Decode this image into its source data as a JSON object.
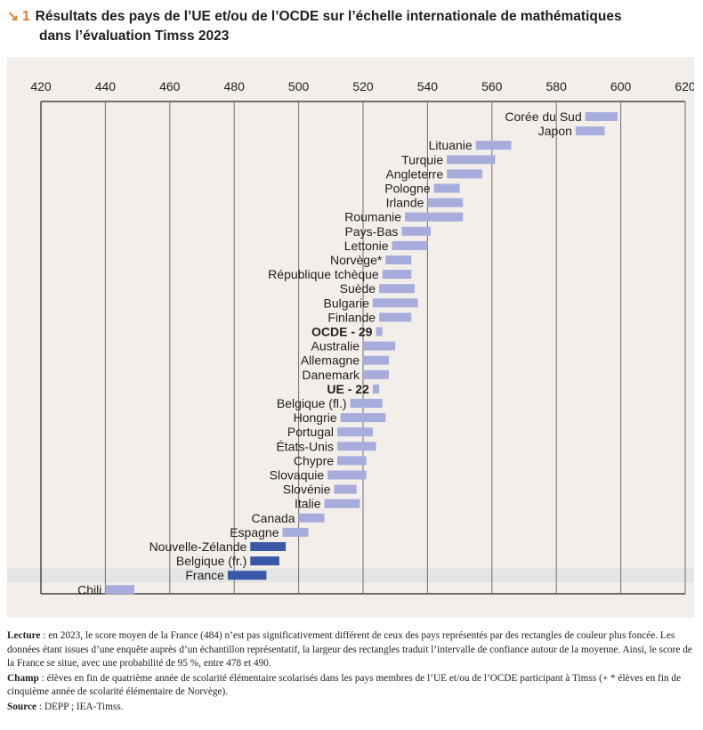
{
  "title": {
    "marker": "1",
    "line1": "Résultats des pays de l’UE et/ou de l’OCDE sur l’échelle internationale de mathématiques",
    "line2": "dans l’évaluation Timss 2023"
  },
  "chart_data": {
    "type": "range-bar",
    "xlim": [
      420,
      620
    ],
    "x_ticks": [
      420,
      440,
      460,
      480,
      500,
      520,
      540,
      560,
      580,
      600,
      620
    ],
    "grid": "vertical",
    "colors": {
      "default": "#a6acdc",
      "highlight": "#3a58a8",
      "france_band": "#e4e4e4"
    },
    "rows": [
      {
        "label": "Corée du Sud",
        "low": 589,
        "high": 599,
        "highlight": false,
        "bold": false
      },
      {
        "label": "Japon",
        "low": 586,
        "high": 595,
        "highlight": false,
        "bold": false
      },
      {
        "label": "Lituanie",
        "low": 555,
        "high": 566,
        "highlight": false,
        "bold": false
      },
      {
        "label": "Turquie",
        "low": 546,
        "high": 561,
        "highlight": false,
        "bold": false
      },
      {
        "label": "Angleterre",
        "low": 546,
        "high": 557,
        "highlight": false,
        "bold": false
      },
      {
        "label": "Pologne",
        "low": 542,
        "high": 550,
        "highlight": false,
        "bold": false
      },
      {
        "label": "Irlande",
        "low": 540,
        "high": 551,
        "highlight": false,
        "bold": false
      },
      {
        "label": "Roumanie",
        "low": 533,
        "high": 551,
        "highlight": false,
        "bold": false
      },
      {
        "label": "Pays-Bas",
        "low": 532,
        "high": 541,
        "highlight": false,
        "bold": false
      },
      {
        "label": "Lettonie",
        "low": 529,
        "high": 540,
        "highlight": false,
        "bold": false
      },
      {
        "label": "Norvège*",
        "low": 527,
        "high": 535,
        "highlight": false,
        "bold": false
      },
      {
        "label": "République tchèque",
        "low": 526,
        "high": 535,
        "highlight": false,
        "bold": false
      },
      {
        "label": "Suède",
        "low": 525,
        "high": 536,
        "highlight": false,
        "bold": false
      },
      {
        "label": "Bulgarie",
        "low": 523,
        "high": 537,
        "highlight": false,
        "bold": false
      },
      {
        "label": "Finlande",
        "low": 525,
        "high": 535,
        "highlight": false,
        "bold": false
      },
      {
        "label": "OCDE - 29",
        "low": 524,
        "high": 526,
        "highlight": false,
        "bold": true
      },
      {
        "label": "Australie",
        "low": 520,
        "high": 530,
        "highlight": false,
        "bold": false
      },
      {
        "label": "Allemagne",
        "low": 520,
        "high": 528,
        "highlight": false,
        "bold": false
      },
      {
        "label": "Danemark",
        "low": 520,
        "high": 528,
        "highlight": false,
        "bold": false
      },
      {
        "label": "UE - 22",
        "low": 523,
        "high": 525,
        "highlight": false,
        "bold": true
      },
      {
        "label": "Belgique (fl.)",
        "low": 516,
        "high": 526,
        "highlight": false,
        "bold": false
      },
      {
        "label": "Hongrie",
        "low": 513,
        "high": 527,
        "highlight": false,
        "bold": false
      },
      {
        "label": "Portugal",
        "low": 512,
        "high": 523,
        "highlight": false,
        "bold": false
      },
      {
        "label": "États-Unis",
        "low": 512,
        "high": 524,
        "highlight": false,
        "bold": false
      },
      {
        "label": "Chypre",
        "low": 512,
        "high": 521,
        "highlight": false,
        "bold": false
      },
      {
        "label": "Slovaquie",
        "low": 509,
        "high": 521,
        "highlight": false,
        "bold": false
      },
      {
        "label": "Slovénie",
        "low": 511,
        "high": 518,
        "highlight": false,
        "bold": false
      },
      {
        "label": "Italie",
        "low": 508,
        "high": 519,
        "highlight": false,
        "bold": false
      },
      {
        "label": "Canada",
        "low": 500,
        "high": 508,
        "highlight": false,
        "bold": false
      },
      {
        "label": "Espagne",
        "low": 495,
        "high": 503,
        "highlight": false,
        "bold": false
      },
      {
        "label": "Nouvelle-Zélande",
        "low": 485,
        "high": 496,
        "highlight": true,
        "bold": false
      },
      {
        "label": "Belgique (fr.)",
        "low": 485,
        "high": 494,
        "highlight": true,
        "bold": false
      },
      {
        "label": "France",
        "low": 478,
        "high": 490,
        "highlight": true,
        "bold": false
      },
      {
        "label": "Chili",
        "low": 440,
        "high": 449,
        "highlight": false,
        "bold": false
      }
    ]
  },
  "notes": {
    "lecture_label": "Lecture",
    "lecture_text": " : en 2023, le score moyen de la France (484) n’est pas significativement différent de ceux des pays représentés par des rectangles de couleur plus foncée. Les données étant issues d’une enquête auprès d’un échantillon représentatif, la largeur des rectangles traduit l’intervalle de confiance autour de la moyenne. Ainsi, le score de la France se situe, avec une probabilité de 95 %, entre 478 et 490.",
    "champ_label": "Champ",
    "champ_text": " : élèves en fin de quatrième année de scolarité élémentaire scolarisés dans les pays membres de l’UE et/ou de l’OCDE participant à Timss (+ * élèves en fin de cinquième année de scolarité élémentaire de Norvège).",
    "source_label": "Source",
    "source_text": " : DEPP ; IEA-Timss."
  }
}
